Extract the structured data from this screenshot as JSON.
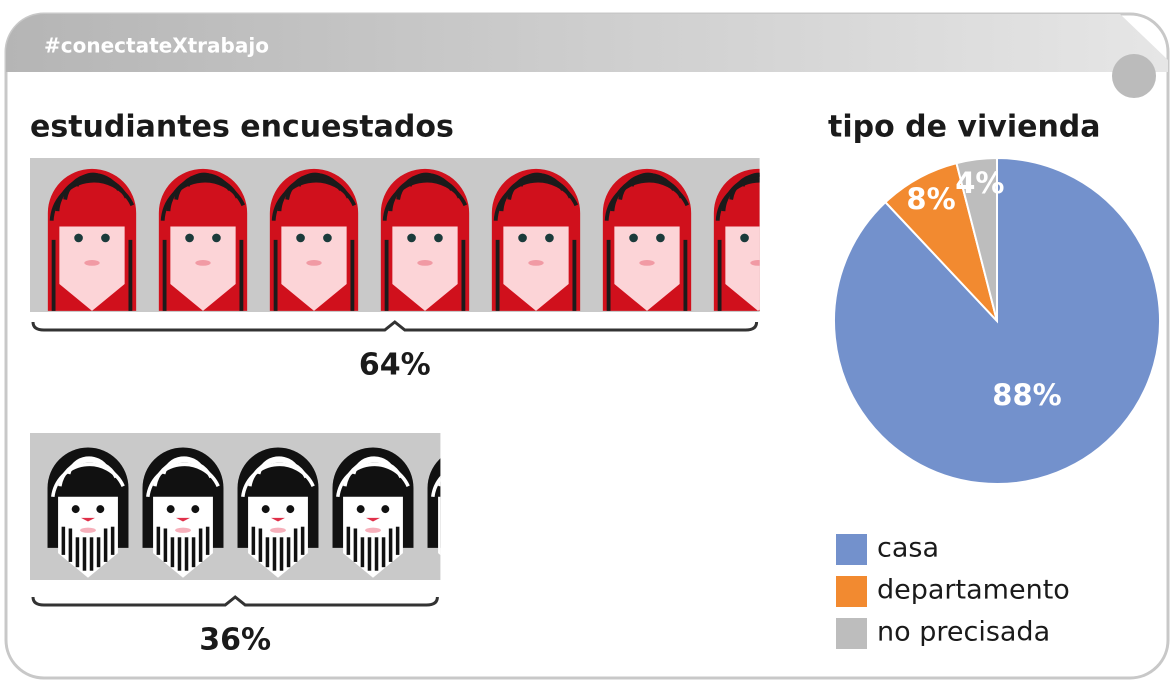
{
  "header": {
    "tag": "#conectateXtrabajo"
  },
  "chart_data": [
    {
      "type": "pictograph",
      "title": "estudiantes encuestados",
      "values": [
        64,
        36
      ],
      "value_labels": [
        "64%",
        "36%"
      ]
    },
    {
      "type": "pie",
      "title": "tipo de vivienda",
      "categories": [
        "casa",
        "departamento",
        "no precisada"
      ],
      "values": [
        88,
        8,
        4
      ],
      "value_labels": [
        "88%",
        "8%",
        "4%"
      ],
      "colors": [
        "#7391cc",
        "#f28a30",
        "#bdbdbd"
      ],
      "legend": "bottom"
    }
  ]
}
